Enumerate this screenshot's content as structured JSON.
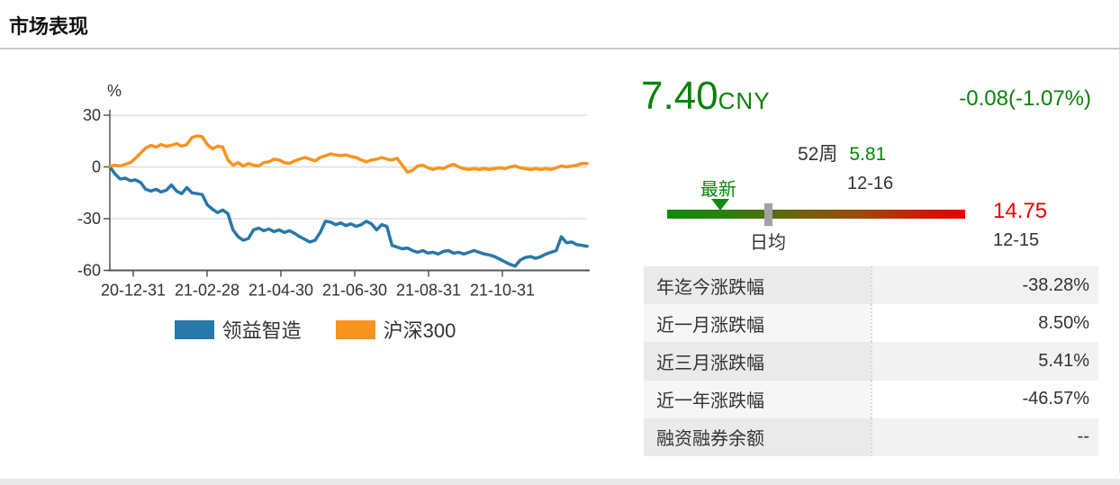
{
  "header": {
    "title": "市场表现"
  },
  "legend": [
    {
      "label": "领益智造",
      "color": "#2878a8"
    },
    {
      "label": "沪深300",
      "color": "#f7941e"
    }
  ],
  "chart_data": {
    "type": "line",
    "title": "",
    "xlabel": "",
    "ylabel": "%",
    "ylim": [
      -60,
      30
    ],
    "yticks": [
      30,
      0,
      -30,
      -60
    ],
    "xticks": [
      "20-12-31",
      "21-02-28",
      "21-04-30",
      "21-06-30",
      "21-08-31",
      "21-10-31"
    ],
    "grid": "horizontal",
    "legend_position": "bottom",
    "series": [
      {
        "name": "领益智造",
        "color": "#2878a8",
        "values": [
          0,
          -4,
          -7,
          -6.5,
          -8,
          -7.5,
          -9,
          -13,
          -14,
          -13,
          -14.5,
          -13.5,
          -10.5,
          -14,
          -15.5,
          -12,
          -15,
          -15.5,
          -16,
          -22,
          -24.5,
          -26.5,
          -25,
          -27,
          -36.5,
          -40.5,
          -42.5,
          -41.5,
          -36.5,
          -35.5,
          -37,
          -36,
          -37.5,
          -36.5,
          -38,
          -37,
          -38.5,
          -40.5,
          -42,
          -43.5,
          -42.5,
          -38,
          -31.5,
          -32,
          -33.5,
          -32.5,
          -34,
          -33,
          -34.5,
          -33.5,
          -31.5,
          -33,
          -36.5,
          -33.5,
          -34.5,
          -45.5,
          -46.5,
          -47.5,
          -47,
          -48.5,
          -49.5,
          -48.5,
          -50,
          -49.5,
          -50.5,
          -49,
          -48.5,
          -50,
          -49.5,
          -50.5,
          -49.5,
          -48.5,
          -49.5,
          -50.5,
          -51,
          -52,
          -53.5,
          -55,
          -56.5,
          -57.5,
          -54,
          -52.5,
          -52,
          -53,
          -52,
          -50.5,
          -49.5,
          -48.5,
          -40.5,
          -44,
          -43.5,
          -45,
          -45.5,
          -46
        ]
      },
      {
        "name": "沪深300",
        "color": "#f7941e",
        "values": [
          0.5,
          1,
          0.5,
          1.5,
          2.5,
          5,
          8,
          11,
          12.5,
          11.5,
          13,
          12,
          12.5,
          13.5,
          12,
          13,
          17,
          18,
          17.5,
          13,
          10.5,
          12,
          11.5,
          4,
          1,
          2.5,
          0.5,
          2,
          1,
          0.5,
          2.5,
          3,
          4.5,
          4,
          2.5,
          2,
          3.5,
          4.5,
          5.5,
          4.5,
          3.5,
          5.5,
          6.5,
          7.5,
          7,
          6.5,
          7,
          6,
          5.5,
          4,
          3,
          4,
          4.5,
          5.5,
          4.5,
          4,
          5,
          1,
          -3,
          -2,
          0.5,
          1,
          -0.5,
          -1.5,
          -0.5,
          -1,
          0.5,
          1.5,
          0,
          -1,
          -1.5,
          -1,
          -1.5,
          -1,
          -1.5,
          -1,
          -0.5,
          -1,
          0,
          0.5,
          -0.5,
          -1,
          -1.5,
          -1,
          -1.5,
          -1,
          -1.5,
          -0.5,
          0.5,
          0,
          0.5,
          1,
          2,
          2
        ]
      }
    ]
  },
  "quote": {
    "price": "7.40",
    "currency": "CNY",
    "change": "-0.08(-1.07%)",
    "price_color": "#0b820b"
  },
  "range52w": {
    "label": "52周",
    "low": "5.81",
    "low_date": "12-16",
    "high": "14.75",
    "high_date": "12-15",
    "latest_label": "最新",
    "avg_label": "日均",
    "low_color": "#0b820b",
    "high_color": "#e60000"
  },
  "table": {
    "rows": [
      {
        "label": "年迄今涨跌幅",
        "value": "-38.28%"
      },
      {
        "label": "近一月涨跌幅",
        "value": "8.50%"
      },
      {
        "label": "近三月涨跌幅",
        "value": "5.41%"
      },
      {
        "label": "近一年涨跌幅",
        "value": "-46.57%"
      },
      {
        "label": "融资融券余额",
        "value": "--"
      }
    ]
  }
}
